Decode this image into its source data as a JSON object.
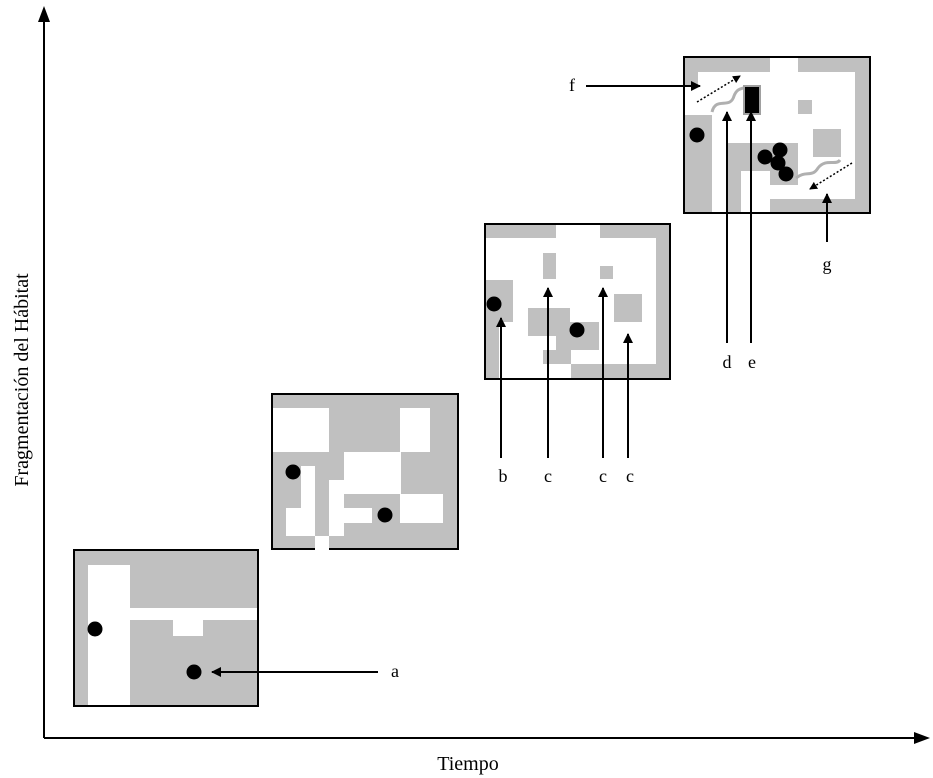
{
  "axes": {
    "x_label": "Tiempo",
    "y_label": "Fragmentación del Hábitat"
  },
  "callouts": {
    "a": "a",
    "b": "b",
    "c1": "c",
    "c2": "c",
    "c3": "c",
    "d": "d",
    "e": "e",
    "f": "f",
    "g": "g"
  },
  "colors": {
    "habitat": "#c0c0c0",
    "cleared": "#ffffff",
    "outline": "#000000",
    "individual": "#000000",
    "corridor": "#b0b0b0"
  },
  "panels": [
    {
      "stage": 1,
      "patches": "continuous",
      "individuals": 2
    },
    {
      "stage": 2,
      "patches": "fragmented",
      "individuals": 2
    },
    {
      "stage": 3,
      "patches": "strongly fragmented",
      "individuals": 2
    },
    {
      "stage": 4,
      "patches": "highly fragmented with corridor and barrier",
      "individuals": 5
    }
  ]
}
